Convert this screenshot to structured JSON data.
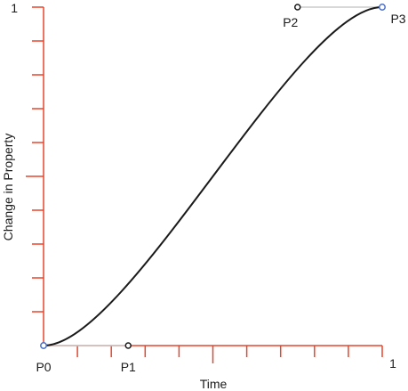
{
  "colors": {
    "axis": "#e8452c",
    "curve": "#1a1a1a",
    "handle_line": "#cccccc",
    "endpoint": "#4a6fc9",
    "control_point": "#1a1a1a"
  },
  "axes": {
    "xlabel": "Time",
    "ylabel": "Change in  Property",
    "x_max_label": "1",
    "y_max_label": "1",
    "x_ticks": [
      0.1,
      0.2,
      0.3,
      0.4,
      0.5,
      0.6,
      0.7,
      0.8,
      0.9,
      1.0
    ],
    "y_ticks": [
      0.1,
      0.2,
      0.3,
      0.4,
      0.5,
      0.6,
      0.7,
      0.8,
      0.9,
      1.0
    ],
    "major_tick": 0.5
  },
  "points": [
    {
      "id": "p0",
      "label": "P0",
      "x": 0,
      "y": 0,
      "kind": "endpoint"
    },
    {
      "id": "p1",
      "label": "P1",
      "x": 0.25,
      "y": 0,
      "kind": "control"
    },
    {
      "id": "p2",
      "label": "P2",
      "x": 0.75,
      "y": 1,
      "kind": "control"
    },
    {
      "id": "p3",
      "label": "P3",
      "x": 1,
      "y": 1,
      "kind": "endpoint"
    }
  ]
}
